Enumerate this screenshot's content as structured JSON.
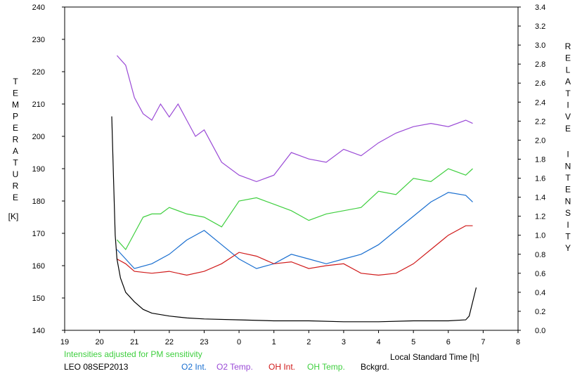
{
  "chart_data": {
    "type": "line",
    "xlabel": "Local Standard Time [h]",
    "ylabel_left": "TEMPERATURE",
    "ylabel_left_unit": "[K]",
    "ylabel_right": "RELATIVE INTENSITY",
    "note": "Intensities adjusted for PM sensitivity",
    "station": "LEO 08SEP2013",
    "x_ticks": [
      "19",
      "20",
      "21",
      "22",
      "23",
      "0",
      "1",
      "2",
      "3",
      "4",
      "5",
      "6",
      "7",
      "8"
    ],
    "xlim": [
      19,
      32
    ],
    "y_left_ticks": [
      "140",
      "150",
      "160",
      "170",
      "180",
      "190",
      "200",
      "210",
      "220",
      "230",
      "240"
    ],
    "ylim_left": [
      140,
      240
    ],
    "y_right_ticks": [
      "0.0",
      "0.2",
      "0.4",
      "0.6",
      "0.8",
      "1.0",
      "1.2",
      "1.4",
      "1.6",
      "1.8",
      "2.0",
      "2.2",
      "2.4",
      "2.6",
      "2.8",
      "3.0",
      "3.2",
      "3.4"
    ],
    "ylim_right": [
      0,
      3.4
    ],
    "grid": false,
    "legend_position": "bottom",
    "series": [
      {
        "name": "O2 Int.",
        "axis": "right",
        "color": "#1a6fd0",
        "x": [
          20.5,
          21,
          21.5,
          22,
          22.5,
          23,
          23.5,
          24,
          24.5,
          25,
          25.5,
          26,
          26.5,
          27,
          27.5,
          28,
          28.5,
          29,
          29.5,
          30,
          30.5,
          30.7
        ],
        "y": [
          0.85,
          0.65,
          0.7,
          0.8,
          0.95,
          1.05,
          0.9,
          0.75,
          0.65,
          0.7,
          0.8,
          0.75,
          0.7,
          0.75,
          0.8,
          0.9,
          1.05,
          1.2,
          1.35,
          1.45,
          1.42,
          1.35
        ]
      },
      {
        "name": "O2 Temp.",
        "axis": "left",
        "color": "#9a4ad6",
        "x": [
          20.5,
          20.75,
          21,
          21.25,
          21.5,
          21.75,
          22,
          22.25,
          22.5,
          22.75,
          23,
          23.5,
          24,
          24.5,
          25,
          25.5,
          26,
          26.5,
          27,
          27.5,
          28,
          28.5,
          29,
          29.5,
          30,
          30.5,
          30.7
        ],
        "y": [
          225,
          222,
          212,
          207,
          205,
          210,
          206,
          210,
          205,
          200,
          202,
          192,
          188,
          186,
          188,
          195,
          193,
          192,
          196,
          194,
          198,
          201,
          203,
          204,
          203,
          205,
          204
        ]
      },
      {
        "name": "OH Int.",
        "axis": "right",
        "color": "#d01a1a",
        "x": [
          20.5,
          20.75,
          21,
          21.5,
          22,
          22.5,
          23,
          23.5,
          24,
          24.5,
          25,
          25.5,
          26,
          26.5,
          27,
          27.5,
          28,
          28.5,
          29,
          29.5,
          30,
          30.5,
          30.7
        ],
        "y": [
          0.75,
          0.7,
          0.62,
          0.6,
          0.62,
          0.58,
          0.62,
          0.7,
          0.82,
          0.78,
          0.7,
          0.72,
          0.65,
          0.68,
          0.7,
          0.6,
          0.58,
          0.6,
          0.7,
          0.85,
          1.0,
          1.1,
          1.1
        ]
      },
      {
        "name": "OH Temp.",
        "axis": "left",
        "color": "#3fcf3f",
        "x": [
          20.5,
          20.75,
          21,
          21.25,
          21.5,
          21.75,
          22,
          22.5,
          23,
          23.5,
          24,
          24.5,
          25,
          25.5,
          26,
          26.5,
          27,
          27.5,
          28,
          28.5,
          29,
          29.5,
          30,
          30.5,
          30.7
        ],
        "y": [
          168,
          165,
          170,
          175,
          176,
          176,
          178,
          176,
          175,
          172,
          180,
          181,
          179,
          177,
          174,
          176,
          177,
          178,
          183,
          182,
          187,
          186,
          190,
          188,
          190
        ]
      },
      {
        "name": "Bckgrd.",
        "axis": "right",
        "color": "#000000",
        "x": [
          20.35,
          20.4,
          20.45,
          20.5,
          20.6,
          20.75,
          21,
          21.25,
          21.5,
          22,
          22.5,
          23,
          24,
          25,
          26,
          27,
          28,
          29,
          29.5,
          30,
          30.5,
          30.6,
          30.7,
          30.8
        ],
        "y": [
          2.25,
          1.6,
          1.0,
          0.75,
          0.55,
          0.4,
          0.3,
          0.22,
          0.18,
          0.15,
          0.13,
          0.12,
          0.11,
          0.1,
          0.1,
          0.09,
          0.09,
          0.1,
          0.1,
          0.1,
          0.11,
          0.15,
          0.3,
          0.45
        ]
      }
    ]
  }
}
